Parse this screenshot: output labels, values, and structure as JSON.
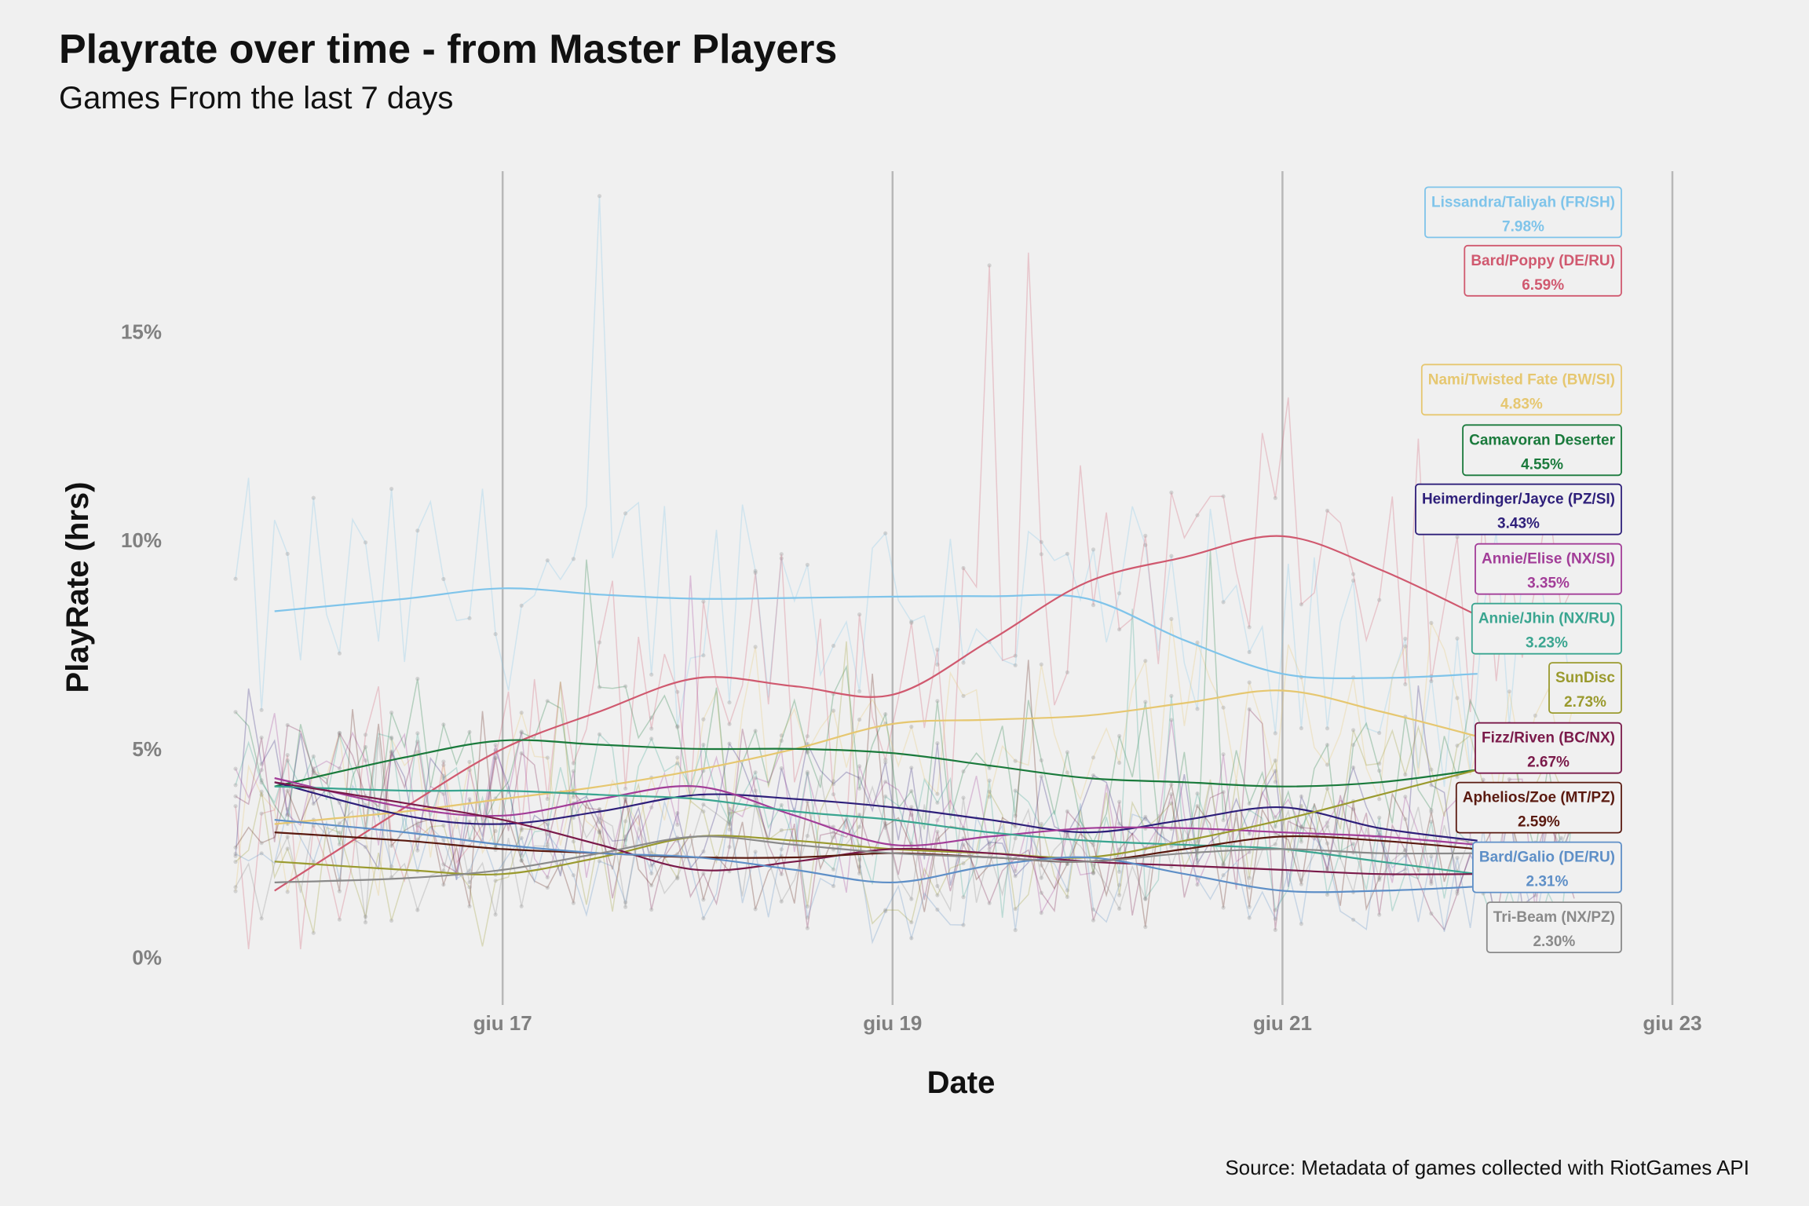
{
  "chart_data": {
    "type": "line",
    "title": "Playrate over time - from Master Players",
    "subtitle": "Games From the last 7 days",
    "xlabel": "Date",
    "ylabel": "PlayRate (hrs)",
    "caption": "Source: Metadata of games collected with RiotGames API",
    "xlim": [
      15.63,
      23.0
    ],
    "ylim": [
      -0.8,
      19
    ],
    "x_ticks": [
      {
        "value": 17,
        "label": "giu 17"
      },
      {
        "value": 19,
        "label": "giu 19"
      },
      {
        "value": 21,
        "label": "giu 21"
      },
      {
        "value": 23,
        "label": "giu 23"
      }
    ],
    "y_ticks": [
      {
        "value": 0,
        "label": "0%"
      },
      {
        "value": 5,
        "label": "5%"
      },
      {
        "value": 10,
        "label": "10%"
      },
      {
        "value": 15,
        "label": "15%"
      }
    ],
    "grid": {
      "vertical": true,
      "horizontal": false
    },
    "legend": "direct-labels-right",
    "series": [
      {
        "name": "Lissandra/Taliyah (FR/SH)",
        "final_label": "7.98%",
        "color": "#7fc4ea",
        "label_y": 17.9,
        "trend": {
          "x": [
            15.83,
            16.5,
            17.0,
            17.5,
            18.0,
            18.5,
            19.0,
            19.5,
            20.0,
            20.5,
            21.0,
            21.5,
            22.0
          ],
          "y": [
            8.3,
            8.6,
            8.85,
            8.7,
            8.6,
            8.62,
            8.65,
            8.66,
            8.6,
            7.6,
            6.8,
            6.7,
            6.8
          ]
        },
        "raw_base": 9.0,
        "raw_amp": 3.2
      },
      {
        "name": "Bard/Poppy (DE/RU)",
        "final_label": "6.59%",
        "color": "#d0596f",
        "label_y": 16.5,
        "trend": {
          "x": [
            15.83,
            16.5,
            17.0,
            17.5,
            18.0,
            18.5,
            19.0,
            19.5,
            20.0,
            20.5,
            21.0,
            21.5,
            22.0
          ],
          "y": [
            1.6,
            3.6,
            5.0,
            5.9,
            6.7,
            6.5,
            6.3,
            7.6,
            9.0,
            9.6,
            10.1,
            9.3,
            8.2
          ]
        },
        "raw_base": 5.0,
        "raw_amp": 3.2
      },
      {
        "name": "Nami/Twisted Fate (BW/SI)",
        "final_label": "4.83%",
        "color": "#e6c770",
        "label_y": 13.65,
        "trend": {
          "x": [
            15.83,
            16.5,
            17.0,
            17.5,
            18.0,
            18.5,
            19.0,
            19.5,
            20.0,
            20.5,
            21.0,
            21.5,
            22.0
          ],
          "y": [
            3.2,
            3.5,
            3.8,
            4.1,
            4.5,
            5.0,
            5.6,
            5.7,
            5.8,
            6.1,
            6.4,
            5.9,
            5.3
          ]
        },
        "raw_base": 4.5,
        "raw_amp": 2.2
      },
      {
        "name": "Camavoran Deserter",
        "final_label": "4.55%",
        "color": "#1a7a3c",
        "label_y": 12.2,
        "trend": {
          "x": [
            15.83,
            16.5,
            17.0,
            17.5,
            18.0,
            18.5,
            19.0,
            19.5,
            20.0,
            20.5,
            21.0,
            21.5,
            22.0
          ],
          "y": [
            4.1,
            4.8,
            5.2,
            5.1,
            5.0,
            5.0,
            4.9,
            4.6,
            4.3,
            4.2,
            4.1,
            4.2,
            4.5
          ]
        },
        "raw_base": 4.2,
        "raw_amp": 2.0
      },
      {
        "name": "Heimerdinger/Jayce (PZ/SI)",
        "final_label": "3.43%",
        "color": "#2e1f7a",
        "label_y": 10.78,
        "trend": {
          "x": [
            15.83,
            16.5,
            17.0,
            17.5,
            18.0,
            18.5,
            19.0,
            19.5,
            20.0,
            20.5,
            21.0,
            21.5,
            22.0
          ],
          "y": [
            4.2,
            3.4,
            3.2,
            3.5,
            3.9,
            3.8,
            3.6,
            3.3,
            3.0,
            3.3,
            3.6,
            3.1,
            2.8
          ]
        },
        "raw_base": 3.2,
        "raw_amp": 1.8
      },
      {
        "name": "Annie/Elise (NX/SI)",
        "final_label": "3.35%",
        "color": "#a23d98",
        "label_y": 9.35,
        "trend": {
          "x": [
            15.83,
            16.5,
            17.0,
            17.5,
            18.0,
            18.5,
            19.0,
            19.5,
            20.0,
            20.5,
            21.0,
            21.5,
            22.0
          ],
          "y": [
            4.3,
            3.6,
            3.4,
            3.8,
            4.1,
            3.4,
            2.7,
            2.9,
            3.1,
            3.1,
            3.0,
            2.9,
            2.7
          ]
        },
        "raw_base": 3.2,
        "raw_amp": 1.8
      },
      {
        "name": "Annie/Jhin (NX/RU)",
        "final_label": "3.23%",
        "color": "#3aa590",
        "label_y": 7.92,
        "trend": {
          "x": [
            15.83,
            16.5,
            17.0,
            17.5,
            18.0,
            18.5,
            19.0,
            19.5,
            20.0,
            20.5,
            21.0,
            21.5,
            22.0
          ],
          "y": [
            4.1,
            4.0,
            4.0,
            3.9,
            3.8,
            3.5,
            3.3,
            3.0,
            2.8,
            2.7,
            2.6,
            2.3,
            2.0
          ]
        },
        "raw_base": 3.0,
        "raw_amp": 1.8
      },
      {
        "name": "SunDisc",
        "final_label": "2.73%",
        "color": "#9a9a2e",
        "label_y": 6.5,
        "trend": {
          "x": [
            15.83,
            16.5,
            17.0,
            17.5,
            18.0,
            18.5,
            19.0,
            19.5,
            20.0,
            20.5,
            21.0,
            21.5,
            22.0
          ],
          "y": [
            2.3,
            2.1,
            2.0,
            2.4,
            2.9,
            2.8,
            2.6,
            2.5,
            2.4,
            2.8,
            3.3,
            3.9,
            4.5
          ]
        },
        "raw_base": 2.7,
        "raw_amp": 1.7
      },
      {
        "name": "Fizz/Riven (BC/NX)",
        "final_label": "2.67%",
        "color": "#7a1a4a",
        "label_y": 5.06,
        "trend": {
          "x": [
            15.83,
            16.5,
            17.0,
            17.5,
            18.0,
            18.5,
            19.0,
            19.5,
            20.0,
            20.5,
            21.0,
            21.5,
            22.0
          ],
          "y": [
            4.2,
            3.7,
            3.3,
            2.7,
            2.1,
            2.3,
            2.6,
            2.5,
            2.3,
            2.2,
            2.1,
            2.0,
            2.0
          ]
        },
        "raw_base": 2.6,
        "raw_amp": 1.7
      },
      {
        "name": "Aphelios/Zoe (MT/PZ)",
        "final_label": "2.59%",
        "color": "#5a1a10",
        "label_y": 3.63,
        "trend": {
          "x": [
            15.83,
            16.5,
            17.0,
            17.5,
            18.0,
            18.5,
            19.0,
            19.5,
            20.0,
            20.5,
            21.0,
            21.5,
            22.0
          ],
          "y": [
            3.0,
            2.8,
            2.6,
            2.5,
            2.4,
            2.4,
            2.5,
            2.4,
            2.3,
            2.6,
            2.9,
            2.8,
            2.6
          ]
        },
        "raw_base": 2.5,
        "raw_amp": 1.6
      },
      {
        "name": "Bard/Galio (DE/RU)",
        "final_label": "2.31%",
        "color": "#5e8fc7",
        "label_y": 2.2,
        "trend": {
          "x": [
            15.83,
            16.5,
            17.0,
            17.5,
            18.0,
            18.5,
            19.0,
            19.5,
            20.0,
            20.5,
            21.0,
            21.5,
            22.0
          ],
          "y": [
            3.3,
            3.0,
            2.7,
            2.5,
            2.4,
            2.1,
            1.8,
            2.2,
            2.4,
            2.0,
            1.6,
            1.6,
            1.7
          ]
        },
        "raw_base": 2.3,
        "raw_amp": 1.6
      },
      {
        "name": "Tri-Beam (NX/PZ)",
        "final_label": "2.30%",
        "color": "#8a8a8a",
        "label_y": 0.76,
        "trend": {
          "x": [
            15.83,
            16.5,
            17.0,
            17.5,
            18.0,
            18.5,
            19.0,
            19.5,
            20.0,
            20.5,
            21.0,
            21.5,
            22.0
          ],
          "y": [
            1.8,
            1.9,
            2.1,
            2.5,
            2.9,
            2.7,
            2.5,
            2.4,
            2.3,
            2.5,
            2.6,
            2.5,
            2.5
          ]
        },
        "raw_base": 2.3,
        "raw_amp": 1.6
      }
    ]
  }
}
